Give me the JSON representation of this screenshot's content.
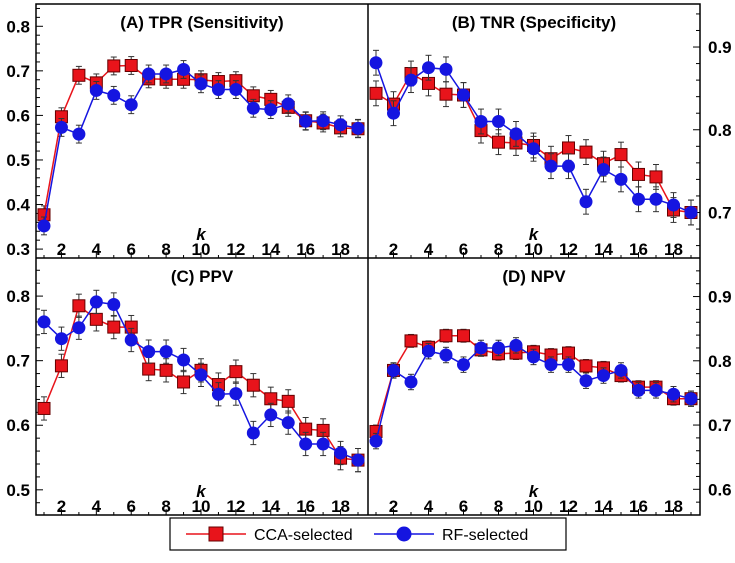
{
  "chart_data": {
    "type": "line",
    "x": [
      1,
      2,
      3,
      4,
      5,
      6,
      7,
      8,
      9,
      10,
      11,
      12,
      13,
      14,
      15,
      16,
      17,
      18,
      19
    ],
    "xlabel": "k",
    "xticks": [
      2,
      4,
      6,
      8,
      10,
      12,
      14,
      16,
      18
    ],
    "legend": {
      "placement": "bottom-center",
      "entries": [
        "CCA-selected",
        "RF-selected"
      ]
    },
    "colors": {
      "CCA-selected": "#e8141b",
      "RF-selected": "#1515e0"
    },
    "panels": [
      {
        "title": "(A) TPR (Sensitivity)",
        "ylim": [
          0.28,
          0.85
        ],
        "yticks": [
          0.3,
          0.4,
          0.5,
          0.6,
          0.7,
          0.8
        ],
        "yaxis_side": "left",
        "series": [
          {
            "name": "CCA-selected",
            "err": 0.02,
            "values": [
              0.377,
              0.597,
              0.69,
              0.673,
              0.711,
              0.712,
              0.682,
              0.681,
              0.681,
              0.68,
              0.676,
              0.678,
              0.644,
              0.636,
              0.618,
              0.588,
              0.583,
              0.572,
              0.57
            ]
          },
          {
            "name": "RF-selected",
            "err": 0.02,
            "values": [
              0.352,
              0.573,
              0.558,
              0.656,
              0.645,
              0.624,
              0.693,
              0.693,
              0.703,
              0.671,
              0.658,
              0.658,
              0.616,
              0.613,
              0.626,
              0.587,
              0.588,
              0.579,
              0.571
            ]
          }
        ]
      },
      {
        "title": "(B) TNR (Specificity)",
        "ylim": [
          0.645,
          0.952
        ],
        "yticks": [
          0.7,
          0.8,
          0.9
        ],
        "yaxis_side": "right",
        "series": [
          {
            "name": "CCA-selected",
            "err": 0.015,
            "values": [
              0.844,
              0.831,
              0.868,
              0.856,
              0.843,
              0.842,
              0.799,
              0.785,
              0.784,
              0.781,
              0.765,
              0.778,
              0.773,
              0.759,
              0.77,
              0.746,
              0.743,
              0.703,
              0.7
            ]
          },
          {
            "name": "RF-selected",
            "err": 0.015,
            "values": [
              0.881,
              0.82,
              0.86,
              0.875,
              0.873,
              0.842,
              0.81,
              0.81,
              0.795,
              0.777,
              0.756,
              0.756,
              0.713,
              0.752,
              0.74,
              0.716,
              0.716,
              0.709,
              0.7
            ]
          }
        ]
      },
      {
        "title": "(C) PPV",
        "ylim": [
          0.461,
          0.859
        ],
        "yticks": [
          0.5,
          0.6,
          0.7,
          0.8
        ],
        "yaxis_side": "left",
        "series": [
          {
            "name": "CCA-selected",
            "err": 0.018,
            "values": [
              0.626,
              0.692,
              0.785,
              0.764,
              0.752,
              0.752,
              0.687,
              0.685,
              0.667,
              0.685,
              0.663,
              0.683,
              0.662,
              0.641,
              0.637,
              0.594,
              0.592,
              0.549,
              0.546
            ]
          },
          {
            "name": "RF-selected",
            "err": 0.018,
            "values": [
              0.76,
              0.734,
              0.751,
              0.791,
              0.787,
              0.732,
              0.714,
              0.714,
              0.701,
              0.678,
              0.648,
              0.649,
              0.588,
              0.616,
              0.604,
              0.571,
              0.571,
              0.557,
              0.546
            ]
          }
        ]
      },
      {
        "title": "(D) NPV",
        "ylim": [
          0.56,
          0.96
        ],
        "yticks": [
          0.6,
          0.7,
          0.8,
          0.9
        ],
        "yaxis_side": "right",
        "series": [
          {
            "name": "CCA-selected",
            "err": 0.01,
            "values": [
              0.69,
              0.785,
              0.831,
              0.821,
              0.839,
              0.839,
              0.817,
              0.811,
              0.812,
              0.814,
              0.809,
              0.812,
              0.792,
              0.789,
              0.777,
              0.759,
              0.759,
              0.741,
              0.741
            ]
          },
          {
            "name": "RF-selected",
            "err": 0.012,
            "values": [
              0.675,
              0.785,
              0.767,
              0.815,
              0.809,
              0.794,
              0.82,
              0.82,
              0.824,
              0.806,
              0.794,
              0.794,
              0.769,
              0.777,
              0.785,
              0.754,
              0.754,
              0.748,
              0.741
            ]
          }
        ]
      }
    ]
  }
}
